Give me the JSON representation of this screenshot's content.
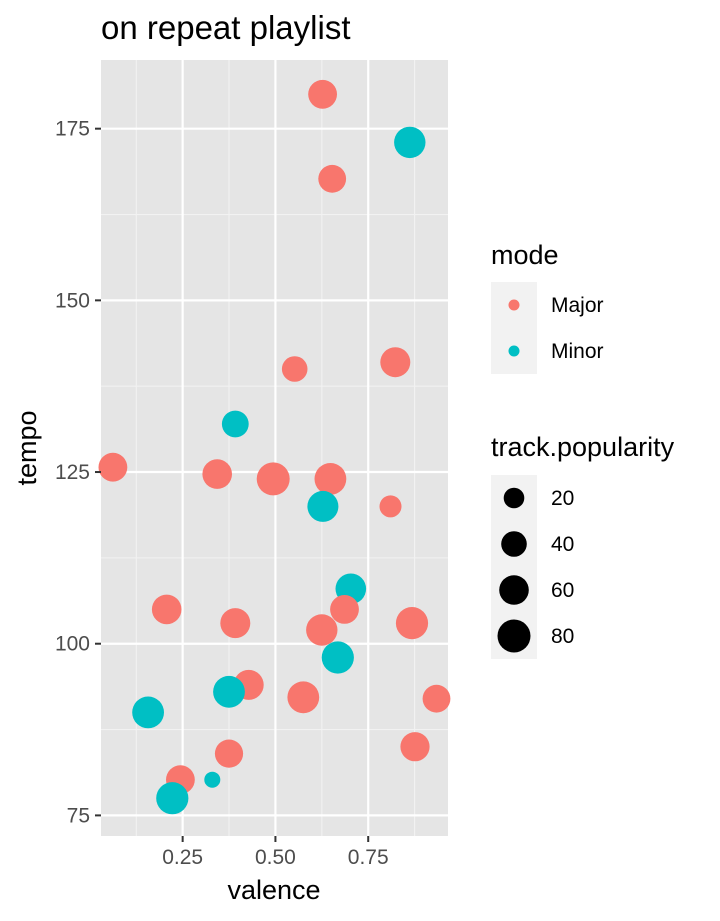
{
  "chart_data": {
    "type": "scatter",
    "title": "on repeat playlist",
    "xlabel": "valence",
    "ylabel": "tempo",
    "xlim": [
      0.03,
      0.965
    ],
    "ylim": [
      72,
      185
    ],
    "x_ticks": [
      0.25,
      0.5,
      0.75
    ],
    "x_tick_labels": [
      "0.25",
      "0.50",
      "0.75"
    ],
    "y_ticks": [
      75,
      100,
      125,
      150,
      175
    ],
    "y_tick_labels": [
      "75",
      "100",
      "125",
      "150",
      "175"
    ],
    "grid": true,
    "background": "#e5e5e5",
    "legend_position": "right",
    "color_legend": {
      "title": "mode",
      "entries": [
        {
          "label": "Major",
          "color": "#f8766d"
        },
        {
          "label": "Minor",
          "color": "#00bfc4"
        }
      ]
    },
    "size_legend": {
      "title": "track.popularity",
      "entries": [
        {
          "label": "20",
          "value": 20
        },
        {
          "label": "40",
          "value": 40
        },
        {
          "label": "60",
          "value": 60
        },
        {
          "label": "80",
          "value": 80
        }
      ]
    },
    "points": [
      {
        "valence": 0.627,
        "tempo": 180,
        "mode": "Major",
        "popularity": 55
      },
      {
        "valence": 0.862,
        "tempo": 173,
        "mode": "Minor",
        "popularity": 70
      },
      {
        "valence": 0.653,
        "tempo": 167.7,
        "mode": "Major",
        "popularity": 50
      },
      {
        "valence": 0.552,
        "tempo": 140,
        "mode": "Major",
        "popularity": 40
      },
      {
        "valence": 0.823,
        "tempo": 141,
        "mode": "Major",
        "popularity": 62
      },
      {
        "valence": 0.392,
        "tempo": 132,
        "mode": "Minor",
        "popularity": 45
      },
      {
        "valence": 0.062,
        "tempo": 125.7,
        "mode": "Major",
        "popularity": 55
      },
      {
        "valence": 0.343,
        "tempo": 124.7,
        "mode": "Major",
        "popularity": 60
      },
      {
        "valence": 0.494,
        "tempo": 124,
        "mode": "Major",
        "popularity": 80
      },
      {
        "valence": 0.648,
        "tempo": 124,
        "mode": "Major",
        "popularity": 72
      },
      {
        "valence": 0.628,
        "tempo": 120,
        "mode": "Minor",
        "popularity": 68
      },
      {
        "valence": 0.81,
        "tempo": 120,
        "mode": "Major",
        "popularity": 25
      },
      {
        "valence": 0.703,
        "tempo": 108,
        "mode": "Minor",
        "popularity": 65
      },
      {
        "valence": 0.207,
        "tempo": 105,
        "mode": "Major",
        "popularity": 60
      },
      {
        "valence": 0.686,
        "tempo": 105,
        "mode": "Major",
        "popularity": 55
      },
      {
        "valence": 0.392,
        "tempo": 103,
        "mode": "Major",
        "popularity": 62
      },
      {
        "valence": 0.868,
        "tempo": 103,
        "mode": "Major",
        "popularity": 75
      },
      {
        "valence": 0.625,
        "tempo": 102,
        "mode": "Major",
        "popularity": 70
      },
      {
        "valence": 0.668,
        "tempo": 98,
        "mode": "Minor",
        "popularity": 75
      },
      {
        "valence": 0.428,
        "tempo": 94,
        "mode": "Major",
        "popularity": 62
      },
      {
        "valence": 0.375,
        "tempo": 93,
        "mode": "Minor",
        "popularity": 72
      },
      {
        "valence": 0.575,
        "tempo": 92.2,
        "mode": "Major",
        "popularity": 72
      },
      {
        "valence": 0.934,
        "tempo": 92,
        "mode": "Major",
        "popularity": 50
      },
      {
        "valence": 0.157,
        "tempo": 90,
        "mode": "Minor",
        "popularity": 72
      },
      {
        "valence": 0.876,
        "tempo": 85,
        "mode": "Major",
        "popularity": 58
      },
      {
        "valence": 0.375,
        "tempo": 84,
        "mode": "Major",
        "popularity": 52
      },
      {
        "valence": 0.244,
        "tempo": 80.2,
        "mode": "Major",
        "popularity": 55
      },
      {
        "valence": 0.33,
        "tempo": 80.2,
        "mode": "Minor",
        "popularity": 8
      },
      {
        "valence": 0.222,
        "tempo": 77.5,
        "mode": "Minor",
        "popularity": 75
      }
    ]
  }
}
